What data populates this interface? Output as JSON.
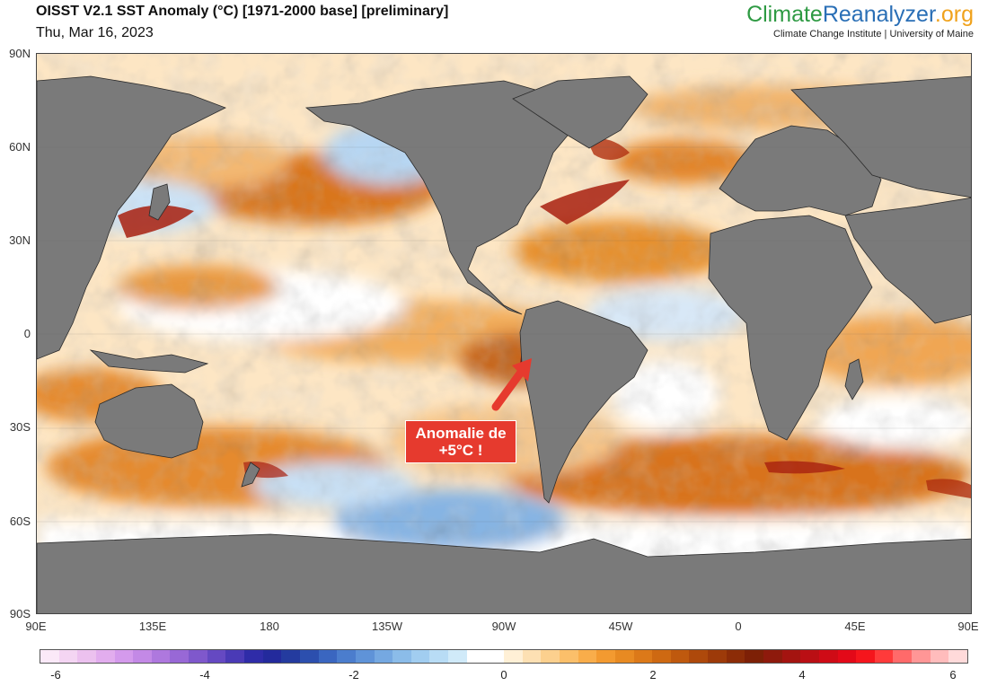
{
  "header": {
    "title": "OISST V2.1 SST Anomaly (°C) [1971-2000 base] [preliminary]",
    "date": "Thu, Mar 16, 2023"
  },
  "brand": {
    "logo_part1": "Climate",
    "logo_part2": "Reanalyzer",
    "logo_part3": ".org",
    "subtitle": "Climate Change Institute | University of Maine",
    "colors": {
      "climate": "#2e9a43",
      "reanalyzer": "#2a6fb6",
      "org": "#f0a21c"
    }
  },
  "map": {
    "lat_labels": [
      "90N",
      "60N",
      "30N",
      "0",
      "30S",
      "60S",
      "90S"
    ],
    "lon_labels": [
      "90E",
      "135E",
      "180",
      "135W",
      "90W",
      "45W",
      "0",
      "45E",
      "90E"
    ],
    "land_color": "#7a7a7a"
  },
  "annotation": {
    "line1": "Anomalie de",
    "line2": "+5°C !",
    "color": "#e63a2e"
  },
  "colorbar": {
    "tick_labels": [
      "-6",
      "-4",
      "-2",
      "0",
      "2",
      "4",
      "6"
    ],
    "colors": [
      "#fbe9f8",
      "#f4d5f3",
      "#ecc1ef",
      "#e2adee",
      "#d49aec",
      "#c389e6",
      "#ae78de",
      "#9868d6",
      "#7f58cc",
      "#6549c2",
      "#4a3ab6",
      "#2f2ca8",
      "#232a9c",
      "#243b9f",
      "#2c4fae",
      "#3a66c0",
      "#4b7dcd",
      "#5f93d8",
      "#75a8e1",
      "#8bbce9",
      "#a1cdf0",
      "#b8dcf5",
      "#d0eaf9",
      "#ffffff",
      "#ffffff",
      "#fff0d6",
      "#fde0b3",
      "#fcd08e",
      "#fbbf6a",
      "#f9ad4a",
      "#f39a30",
      "#e88a22",
      "#dc7919",
      "#ce6912",
      "#bf590e",
      "#ae490b",
      "#9d3a09",
      "#8c2c07",
      "#7d2006",
      "#8e1a0c",
      "#a41410",
      "#ba0f14",
      "#cf0b16",
      "#e30918",
      "#f5151c",
      "#ff3a3a",
      "#ff6a6a",
      "#ff9696",
      "#ffbcbc",
      "#ffdada"
    ]
  }
}
